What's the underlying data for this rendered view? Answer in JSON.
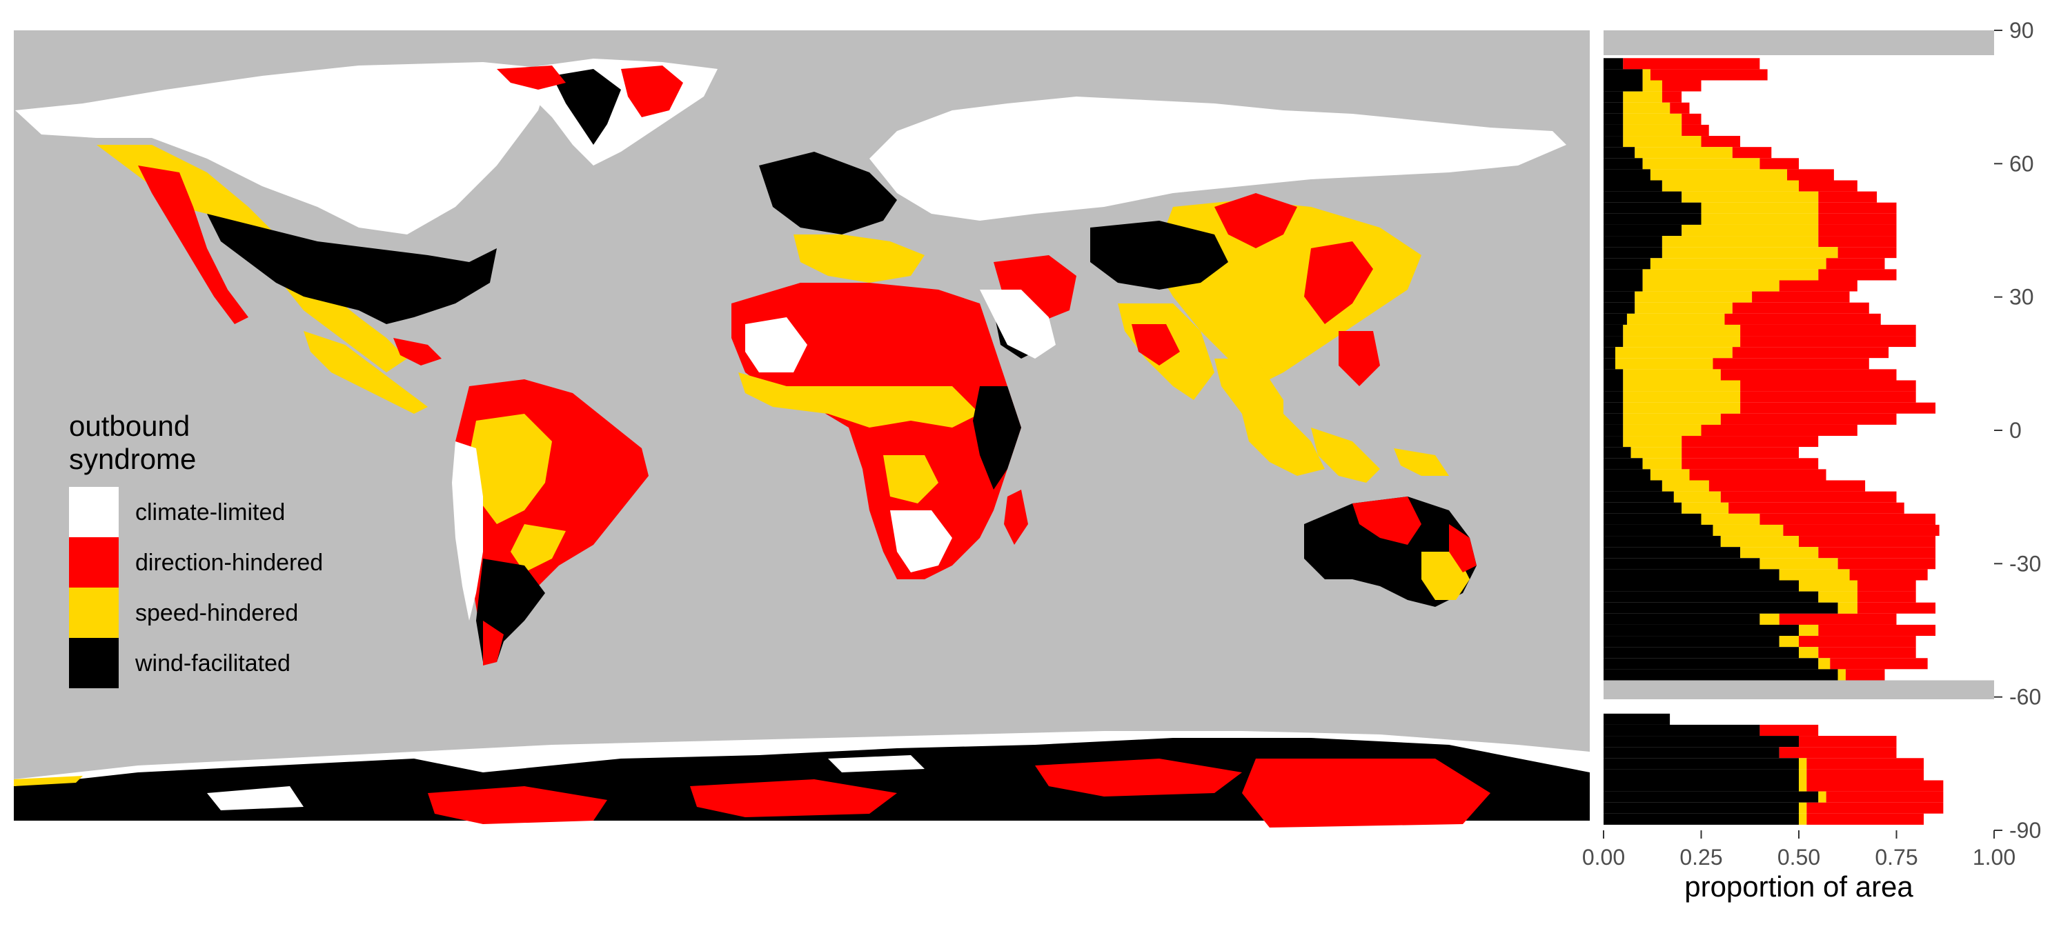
{
  "colors": {
    "background": "#bebebe",
    "ocean": "#bebebe",
    "climate_limited": "#ffffff",
    "direction_hindered": "#ff0000",
    "speed_hindered": "#ffd700",
    "wind_facilitated": "#000000",
    "axis_text": "#4d4d4d",
    "tick": "#333333"
  },
  "legend": {
    "title_line1": "outbound",
    "title_line2": "syndrome",
    "items": [
      {
        "label": "climate-limited",
        "color": "#ffffff"
      },
      {
        "label": "direction-hindered",
        "color": "#ff0000"
      },
      {
        "label": "speed-hindered",
        "color": "#ffd700"
      },
      {
        "label": "wind-facilitated",
        "color": "#000000"
      }
    ]
  },
  "chart_data": [
    {
      "type": "heatmap",
      "description_kind": "map",
      "categories": [
        "climate-limited",
        "direction-hindered",
        "speed-hindered",
        "wind-facilitated"
      ]
    },
    {
      "type": "bar",
      "orientation": "horizontal-stacked",
      "xlabel": "proportion of area",
      "x_ticks": [
        "0.00",
        "0.25",
        "0.50",
        "0.75",
        "1.00"
      ],
      "xlim": [
        0,
        1
      ],
      "y_ticks": [
        "90",
        "60",
        "30",
        "0",
        "-30",
        "-60",
        "-90"
      ],
      "ylim": [
        -90,
        90
      ],
      "series_order": [
        "wind-facilitated",
        "speed-hindered",
        "direction-hindered",
        "climate-limited"
      ],
      "latitude": [
        82.5,
        80,
        77.5,
        75,
        72.5,
        70,
        67.5,
        65,
        62.5,
        60,
        57.5,
        55,
        52.5,
        50,
        47.5,
        45,
        42.5,
        40,
        37.5,
        35,
        32.5,
        30,
        27.5,
        25,
        22.5,
        20,
        17.5,
        15,
        12.5,
        10,
        7.5,
        5,
        2.5,
        0,
        -2.5,
        -5,
        -7.5,
        -10,
        -12.5,
        -15,
        -17.5,
        -20,
        -22.5,
        -25,
        -27.5,
        -30,
        -32.5,
        -35,
        -37.5,
        -40,
        -42.5,
        -45,
        -47.5,
        -50,
        -52.5,
        -55,
        -65,
        -67.5,
        -70,
        -72.5,
        -75,
        -77.5,
        -80,
        -82.5,
        -85,
        -87.5
      ],
      "wind_facilitated": [
        0.05,
        0.1,
        0.1,
        0.05,
        0.05,
        0.05,
        0.05,
        0.05,
        0.08,
        0.1,
        0.12,
        0.15,
        0.2,
        0.25,
        0.25,
        0.2,
        0.15,
        0.15,
        0.12,
        0.1,
        0.1,
        0.08,
        0.08,
        0.06,
        0.05,
        0.05,
        0.03,
        0.03,
        0.05,
        0.05,
        0.05,
        0.05,
        0.05,
        0.05,
        0.05,
        0.07,
        0.1,
        0.12,
        0.15,
        0.18,
        0.2,
        0.25,
        0.28,
        0.3,
        0.35,
        0.4,
        0.45,
        0.5,
        0.55,
        0.6,
        0.4,
        0.5,
        0.45,
        0.5,
        0.55,
        0.6,
        0.17,
        0.4,
        0.5,
        0.45,
        0.5,
        0.5,
        0.5,
        0.55,
        0.5,
        0.5
      ],
      "speed_hindered": [
        0.0,
        0.02,
        0.05,
        0.1,
        0.12,
        0.15,
        0.15,
        0.2,
        0.25,
        0.3,
        0.35,
        0.35,
        0.35,
        0.3,
        0.3,
        0.35,
        0.4,
        0.45,
        0.45,
        0.45,
        0.35,
        0.3,
        0.25,
        0.25,
        0.3,
        0.3,
        0.3,
        0.25,
        0.25,
        0.3,
        0.3,
        0.3,
        0.25,
        0.2,
        0.15,
        0.13,
        0.1,
        0.1,
        0.12,
        0.12,
        0.12,
        0.15,
        0.18,
        0.2,
        0.2,
        0.2,
        0.18,
        0.15,
        0.1,
        0.05,
        0.05,
        0.05,
        0.05,
        0.05,
        0.03,
        0.02,
        0.0,
        0.0,
        0.0,
        0.0,
        0.02,
        0.02,
        0.02,
        0.02,
        0.02,
        0.02
      ],
      "direction_hindered": [
        0.35,
        0.3,
        0.1,
        0.05,
        0.05,
        0.05,
        0.07,
        0.1,
        0.1,
        0.1,
        0.12,
        0.15,
        0.15,
        0.2,
        0.2,
        0.2,
        0.2,
        0.15,
        0.15,
        0.2,
        0.2,
        0.25,
        0.35,
        0.4,
        0.45,
        0.45,
        0.4,
        0.4,
        0.45,
        0.45,
        0.45,
        0.5,
        0.45,
        0.4,
        0.35,
        0.3,
        0.35,
        0.35,
        0.4,
        0.45,
        0.45,
        0.45,
        0.4,
        0.35,
        0.3,
        0.25,
        0.2,
        0.15,
        0.15,
        0.2,
        0.3,
        0.3,
        0.3,
        0.25,
        0.25,
        0.1,
        0.0,
        0.15,
        0.25,
        0.3,
        0.3,
        0.3,
        0.35,
        0.3,
        0.35,
        0.3
      ]
    }
  ]
}
